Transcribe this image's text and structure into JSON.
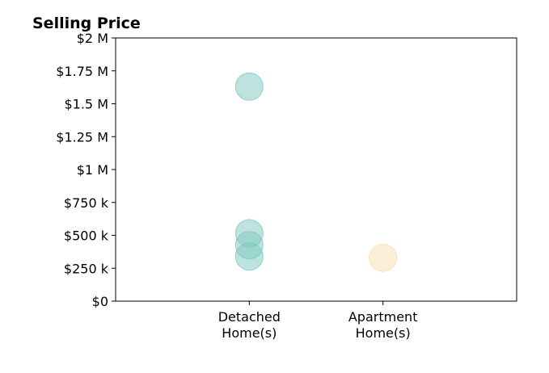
{
  "chart_data": {
    "type": "scatter",
    "title": "Selling Price",
    "xlabel": "",
    "ylabel": "",
    "categories": [
      {
        "line1": "Detached",
        "line2": "Home(s)"
      },
      {
        "line1": "Apartment",
        "line2": "Home(s)"
      }
    ],
    "xlim": [
      -1,
      2
    ],
    "ylim": [
      0,
      2000000
    ],
    "y_ticks": [
      {
        "value": 0,
        "label": "$0"
      },
      {
        "value": 250000,
        "label": "$250 k"
      },
      {
        "value": 500000,
        "label": "$500 k"
      },
      {
        "value": 750000,
        "label": "$750 k"
      },
      {
        "value": 1000000,
        "label": "$1 M"
      },
      {
        "value": 1250000,
        "label": "$1.25 M"
      },
      {
        "value": 1500000,
        "label": "$1.5 M"
      },
      {
        "value": 1750000,
        "label": "$1.75 M"
      },
      {
        "value": 2000000,
        "label": "$2 M"
      }
    ],
    "grid": false,
    "legend": "none",
    "series": [
      {
        "color": "#7ec8be",
        "points": [
          {
            "category": 0,
            "y": 1630000
          },
          {
            "category": 0,
            "y": 515000
          },
          {
            "category": 0,
            "y": 425000
          },
          {
            "category": 0,
            "y": 340000
          }
        ]
      },
      {
        "color": "#f7deb0",
        "points": [
          {
            "category": 1,
            "y": 330000
          }
        ]
      }
    ]
  }
}
